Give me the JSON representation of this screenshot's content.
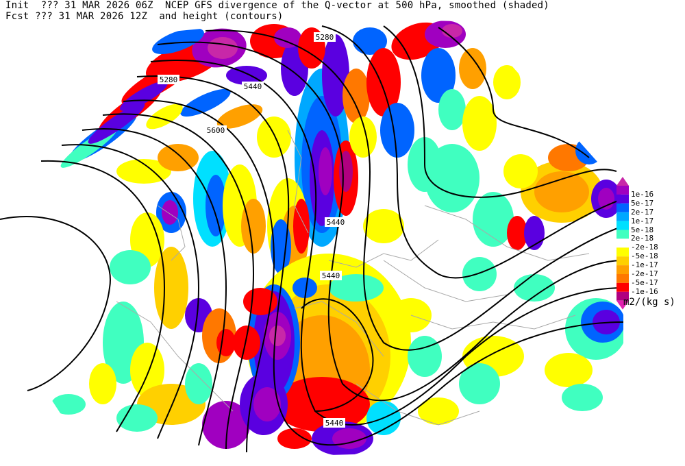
{
  "header": {
    "line1_left": "Init  ??? 31 MAR 2026 06Z",
    "line1_right": "NCEP GFS divergence of the Q-vector at 500 hPa, smoothed (shaded)",
    "line2_left": "Fcst ??? 31 MAR 2026 12Z",
    "line2_right": "and height (contours)"
  },
  "legend": {
    "unit": "m2/(kg s)",
    "labels": [
      "1e-16",
      "5e-17",
      "2e-17",
      "1e-17",
      "5e-18",
      "2e-18",
      "-2e-18",
      "-5e-18",
      "-1e-17",
      "-2e-17",
      "-5e-17",
      "-1e-16"
    ],
    "colors": [
      "#c828a8",
      "#a000c0",
      "#5a00e0",
      "#0064ff",
      "#00a8ff",
      "#00e0ff",
      "#40ffc0",
      "#ffffff",
      "#ffff00",
      "#ffd000",
      "#ffa000",
      "#ff7800",
      "#ff0000",
      "#b00080",
      "#e020b0"
    ]
  },
  "contour_labels": [
    "5280",
    "5280",
    "5440",
    "5600",
    "5440",
    "5440",
    "5440"
  ]
}
